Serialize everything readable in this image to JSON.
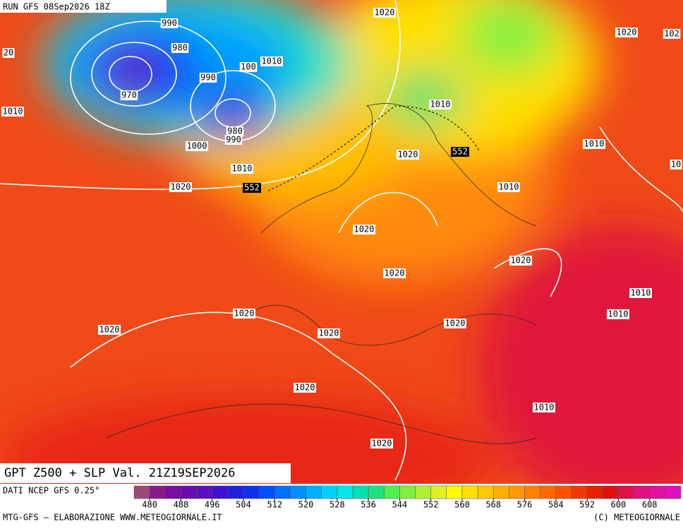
{
  "header": {
    "run": "RUN GFS 08Sep2026 18Z"
  },
  "map": {
    "isobar_labels": [
      "990",
      "1020",
      "1020",
      "102",
      "20",
      "980",
      "1010",
      "100",
      "990",
      "970",
      "1010",
      "980",
      "990",
      "1000",
      "1010",
      "1020",
      "1010",
      "10",
      "1010",
      "1020",
      "1010",
      "1020",
      "1020",
      "1020",
      "1010",
      "1010",
      "1020",
      "1020",
      "1020",
      "1020",
      "1020",
      "1010",
      "1020"
    ],
    "z500_labels": [
      "552",
      "552"
    ]
  },
  "footer": {
    "title": "GPT Z500 + SLP Val. 21Z19SEP2026",
    "source": "DATI NCEP GFS 0.25°",
    "credit": "MTG-GFS — ELABORAZIONE WWW.METEOGIORNALE.IT",
    "copyright": "(C) METEOGIORNALE"
  },
  "colorbar": {
    "lim": [
      476,
      616
    ],
    "ticks": [
      480,
      488,
      496,
      504,
      512,
      520,
      528,
      536,
      544,
      552,
      560,
      568,
      576,
      584,
      592,
      600,
      608
    ],
    "colors": [
      "#9a4a78",
      "#8a1a8a",
      "#7a0ea0",
      "#6a0ab0",
      "#5a10c0",
      "#4010d0",
      "#2020e0",
      "#1030f0",
      "#0050ff",
      "#0070ff",
      "#0090ff",
      "#00b0ff",
      "#00d0ff",
      "#00e8e8",
      "#00e0b0",
      "#20e080",
      "#50f050",
      "#80f040",
      "#b0f030",
      "#e0f020",
      "#ffff00",
      "#ffe000",
      "#ffc800",
      "#ffb000",
      "#ff9800",
      "#ff8000",
      "#ff6800",
      "#ff5000",
      "#f03800",
      "#e82000",
      "#e01010",
      "#e0104a",
      "#e01080",
      "#e010a0",
      "#e010c0"
    ]
  }
}
